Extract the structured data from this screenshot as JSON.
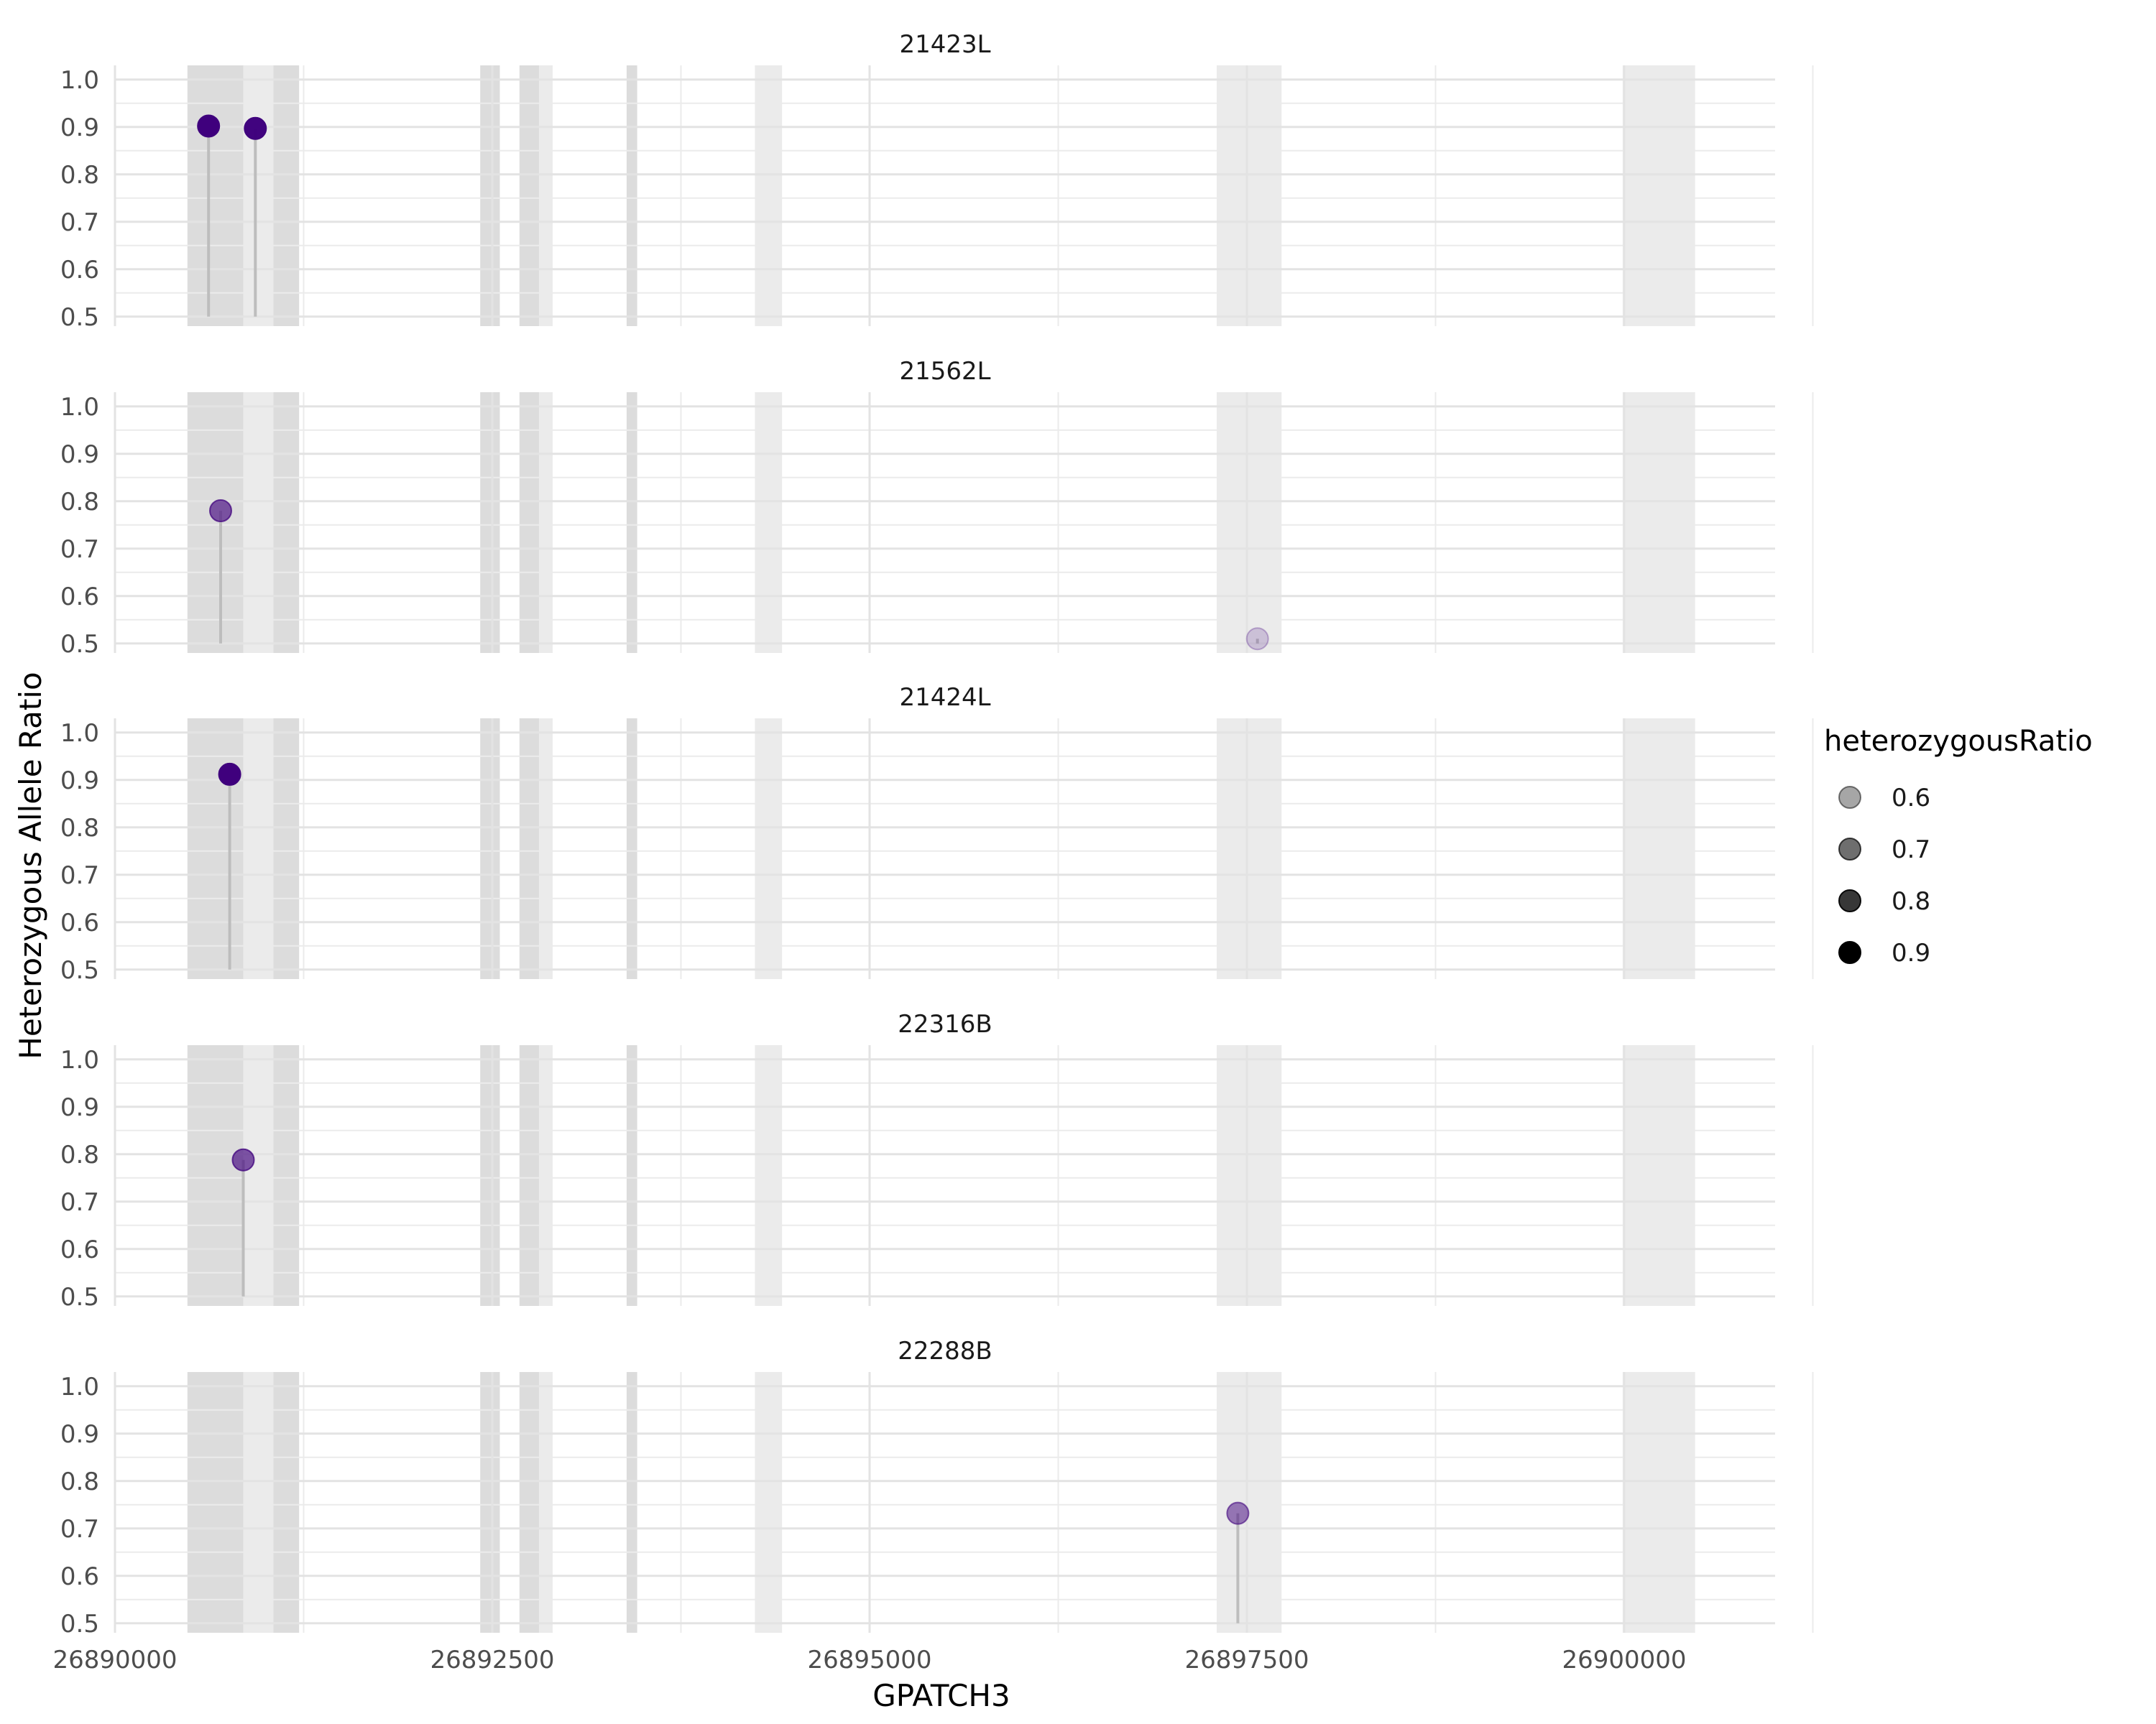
{
  "chart_data": {
    "type": "scatter",
    "variant": "lollipop-faceted",
    "xlabel": "GPATCH3",
    "ylabel": "Heterozygous Allele Ratio",
    "xlim": [
      26890000,
      26901000
    ],
    "ylim": [
      0.48,
      1.03
    ],
    "yticks": [
      0.5,
      0.6,
      0.7,
      0.8,
      0.9,
      1.0
    ],
    "yticklabels": [
      "0.5",
      "0.6",
      "0.7",
      "0.8",
      "0.9",
      "1.0"
    ],
    "xticks": [
      26890000,
      26892500,
      26895000,
      26897500,
      26900000
    ],
    "xticklabels": [
      "26890000",
      "26892500",
      "26895000",
      "26897500",
      "26900000"
    ],
    "stem_base": 0.5,
    "point_color": "#3f007d",
    "stem_color": "#bdbdbd",
    "exon_regions": [
      {
        "start": 26890480,
        "end": 26890850,
        "shade": "dark"
      },
      {
        "start": 26890850,
        "end": 26891050,
        "shade": "light"
      },
      {
        "start": 26891050,
        "end": 26891220,
        "shade": "dark"
      },
      {
        "start": 26892420,
        "end": 26892550,
        "shade": "dark"
      },
      {
        "start": 26892680,
        "end": 26892810,
        "shade": "dark"
      },
      {
        "start": 26892810,
        "end": 26892900,
        "shade": "light"
      },
      {
        "start": 26893390,
        "end": 26893460,
        "shade": "dark"
      },
      {
        "start": 26894240,
        "end": 26894420,
        "shade": "light"
      },
      {
        "start": 26897300,
        "end": 26897730,
        "shade": "light"
      },
      {
        "start": 26899990,
        "end": 26900470,
        "shade": "light"
      }
    ],
    "facets": [
      {
        "title": "21423L",
        "points": [
          {
            "x": 26890620,
            "y": 0.902
          },
          {
            "x": 26890930,
            "y": 0.897
          }
        ]
      },
      {
        "title": "21562L",
        "points": [
          {
            "x": 26890700,
            "y": 0.78
          },
          {
            "x": 26897570,
            "y": 0.51
          }
        ]
      },
      {
        "title": "21424L",
        "points": [
          {
            "x": 26890760,
            "y": 0.912
          }
        ]
      },
      {
        "title": "22316B",
        "points": [
          {
            "x": 26890850,
            "y": 0.788
          }
        ]
      },
      {
        "title": "22288B",
        "points": [
          {
            "x": 26897440,
            "y": 0.732
          }
        ]
      }
    ],
    "legend": {
      "title": "heterozygousRatio",
      "position": "right",
      "entries": [
        {
          "label": "0.6",
          "value": 0.6
        },
        {
          "label": "0.7",
          "value": 0.7
        },
        {
          "label": "0.8",
          "value": 0.8
        },
        {
          "label": "0.9",
          "value": 0.9
        }
      ]
    }
  }
}
